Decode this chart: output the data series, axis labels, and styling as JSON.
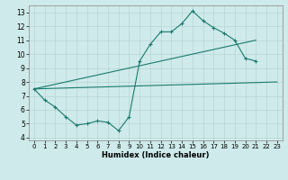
{
  "xlabel": "Humidex (Indice chaleur)",
  "bg_color": "#ceeaea",
  "grid_color": "#b8d4d4",
  "line_color": "#1a7a6e",
  "xlim": [
    -0.5,
    23.5
  ],
  "ylim": [
    3.8,
    13.5
  ],
  "xticks": [
    0,
    1,
    2,
    3,
    4,
    5,
    6,
    7,
    8,
    9,
    10,
    11,
    12,
    13,
    14,
    15,
    16,
    17,
    18,
    19,
    20,
    21,
    22,
    23
  ],
  "yticks": [
    4,
    5,
    6,
    7,
    8,
    9,
    10,
    11,
    12,
    13
  ],
  "line1_x": [
    0,
    1,
    2,
    3,
    4,
    5,
    6,
    7,
    8,
    9,
    10,
    11,
    12,
    13,
    14,
    15,
    16,
    17,
    18,
    19,
    20,
    21
  ],
  "line1_y": [
    7.5,
    6.7,
    6.2,
    5.5,
    4.9,
    5.0,
    5.2,
    5.1,
    4.5,
    5.5,
    9.5,
    10.7,
    11.6,
    11.6,
    12.2,
    13.1,
    12.4,
    11.9,
    11.5,
    11.0,
    9.7,
    9.5
  ],
  "line2_x": [
    0,
    23
  ],
  "line2_y": [
    7.5,
    8.0
  ],
  "line3_x": [
    0,
    21
  ],
  "line3_y": [
    7.5,
    11.0
  ]
}
